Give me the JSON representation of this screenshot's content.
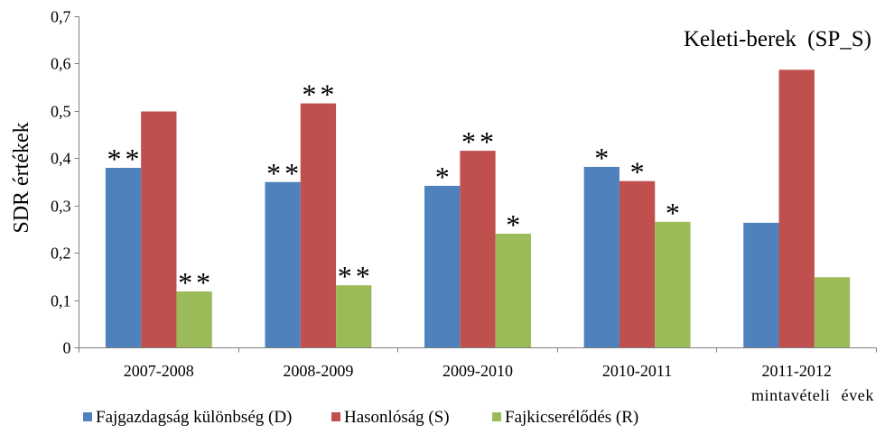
{
  "chart_data": {
    "type": "bar",
    "title": "Keleti-berek (SP_S)",
    "xlabel": "mintavételi évek",
    "ylabel": "SDR értékek",
    "categories": [
      "2007-2008",
      "2008-2009",
      "2009-2010",
      "2010-2011",
      "2011-2012"
    ],
    "ylim": [
      0,
      0.7
    ],
    "yticks": [
      0,
      0.1,
      0.2,
      0.3,
      0.4,
      0.5,
      0.6,
      0.7
    ],
    "ytick_labels": [
      "0",
      "0,1",
      "0,2",
      "0,3",
      "0,4",
      "0,5",
      "0,6",
      "0,7"
    ],
    "grid": false,
    "legend_position": "bottom",
    "series": [
      {
        "name": "Fajgazdagság különbség (D)",
        "color": "#4F81BD",
        "values": [
          0.38,
          0.35,
          0.342,
          0.382,
          0.264
        ],
        "annotations": [
          "**",
          "**",
          "*",
          "*",
          ""
        ]
      },
      {
        "name": "Hasonlóság (S)",
        "color": "#C0504D",
        "values": [
          0.499,
          0.516,
          0.416,
          0.352,
          0.587
        ],
        "annotations": [
          "",
          "**",
          "**",
          "*",
          ""
        ]
      },
      {
        "name": "Fajkicserélődés (R)",
        "color": "#9BBB59",
        "values": [
          0.119,
          0.132,
          0.241,
          0.266,
          0.149
        ],
        "annotations": [
          "**",
          "**",
          "*",
          "*",
          ""
        ]
      }
    ]
  }
}
